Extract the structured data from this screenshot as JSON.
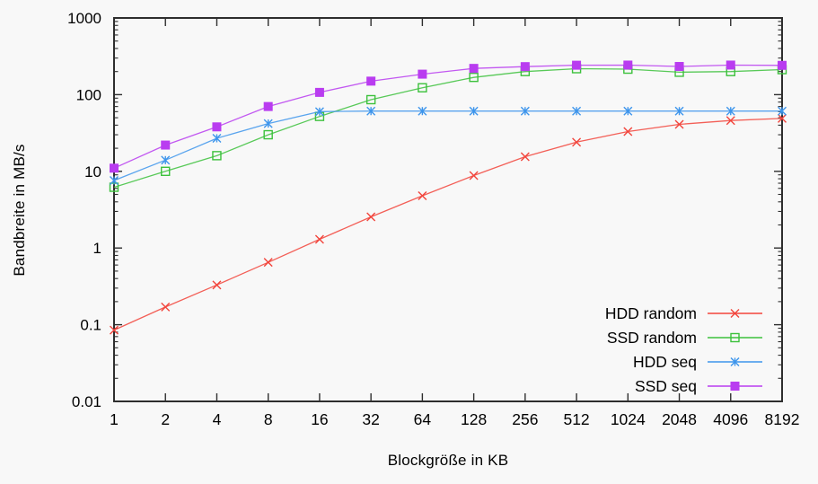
{
  "chart_data": {
    "type": "line",
    "title": "",
    "xlabel": "Blockgröße in KB",
    "ylabel": "Bandbreite in MB/s",
    "x_scale": "log2",
    "y_scale": "log10",
    "categories": [
      1,
      2,
      4,
      8,
      16,
      32,
      64,
      128,
      256,
      512,
      1024,
      2048,
      4096,
      8192
    ],
    "x_tick_labels": [
      "1",
      "2",
      "4",
      "8",
      "16",
      "32",
      "64",
      "128",
      "256",
      "512",
      "1024",
      "2048",
      "4096",
      "8192"
    ],
    "y_ticks": [
      0.01,
      0.1,
      1,
      10,
      100,
      1000
    ],
    "y_tick_labels": [
      "0.01",
      "0.1",
      "1",
      "10",
      "100",
      "1000"
    ],
    "ylim": [
      0.01,
      1000
    ],
    "grid": false,
    "legend_position": "bottom-right-inside",
    "series": [
      {
        "name": "HDD random",
        "color": "#f2443b",
        "marker": "cross",
        "values": [
          0.085,
          0.17,
          0.33,
          0.65,
          1.3,
          2.55,
          4.8,
          8.8,
          15.5,
          24,
          33,
          41,
          46,
          49
        ]
      },
      {
        "name": "SSD random",
        "color": "#3cc13c",
        "marker": "open-square",
        "values": [
          6.2,
          10,
          16,
          30,
          52,
          86,
          123,
          168,
          200,
          218,
          215,
          196,
          200,
          212
        ]
      },
      {
        "name": "HDD seq",
        "color": "#3d95ec",
        "marker": "asterisk",
        "values": [
          7.6,
          14,
          27,
          42,
          60,
          61,
          61,
          61,
          61,
          61,
          61,
          61,
          61,
          61
        ]
      },
      {
        "name": "SSD seq",
        "color": "#b93cf0",
        "marker": "filled-square",
        "values": [
          11,
          22,
          38,
          70,
          107,
          150,
          185,
          220,
          232,
          242,
          243,
          233,
          243,
          241
        ]
      }
    ]
  },
  "style": {
    "background_color": "#f8f8f8",
    "axis_color": "#2e2e2e",
    "text_color": "#000000"
  }
}
